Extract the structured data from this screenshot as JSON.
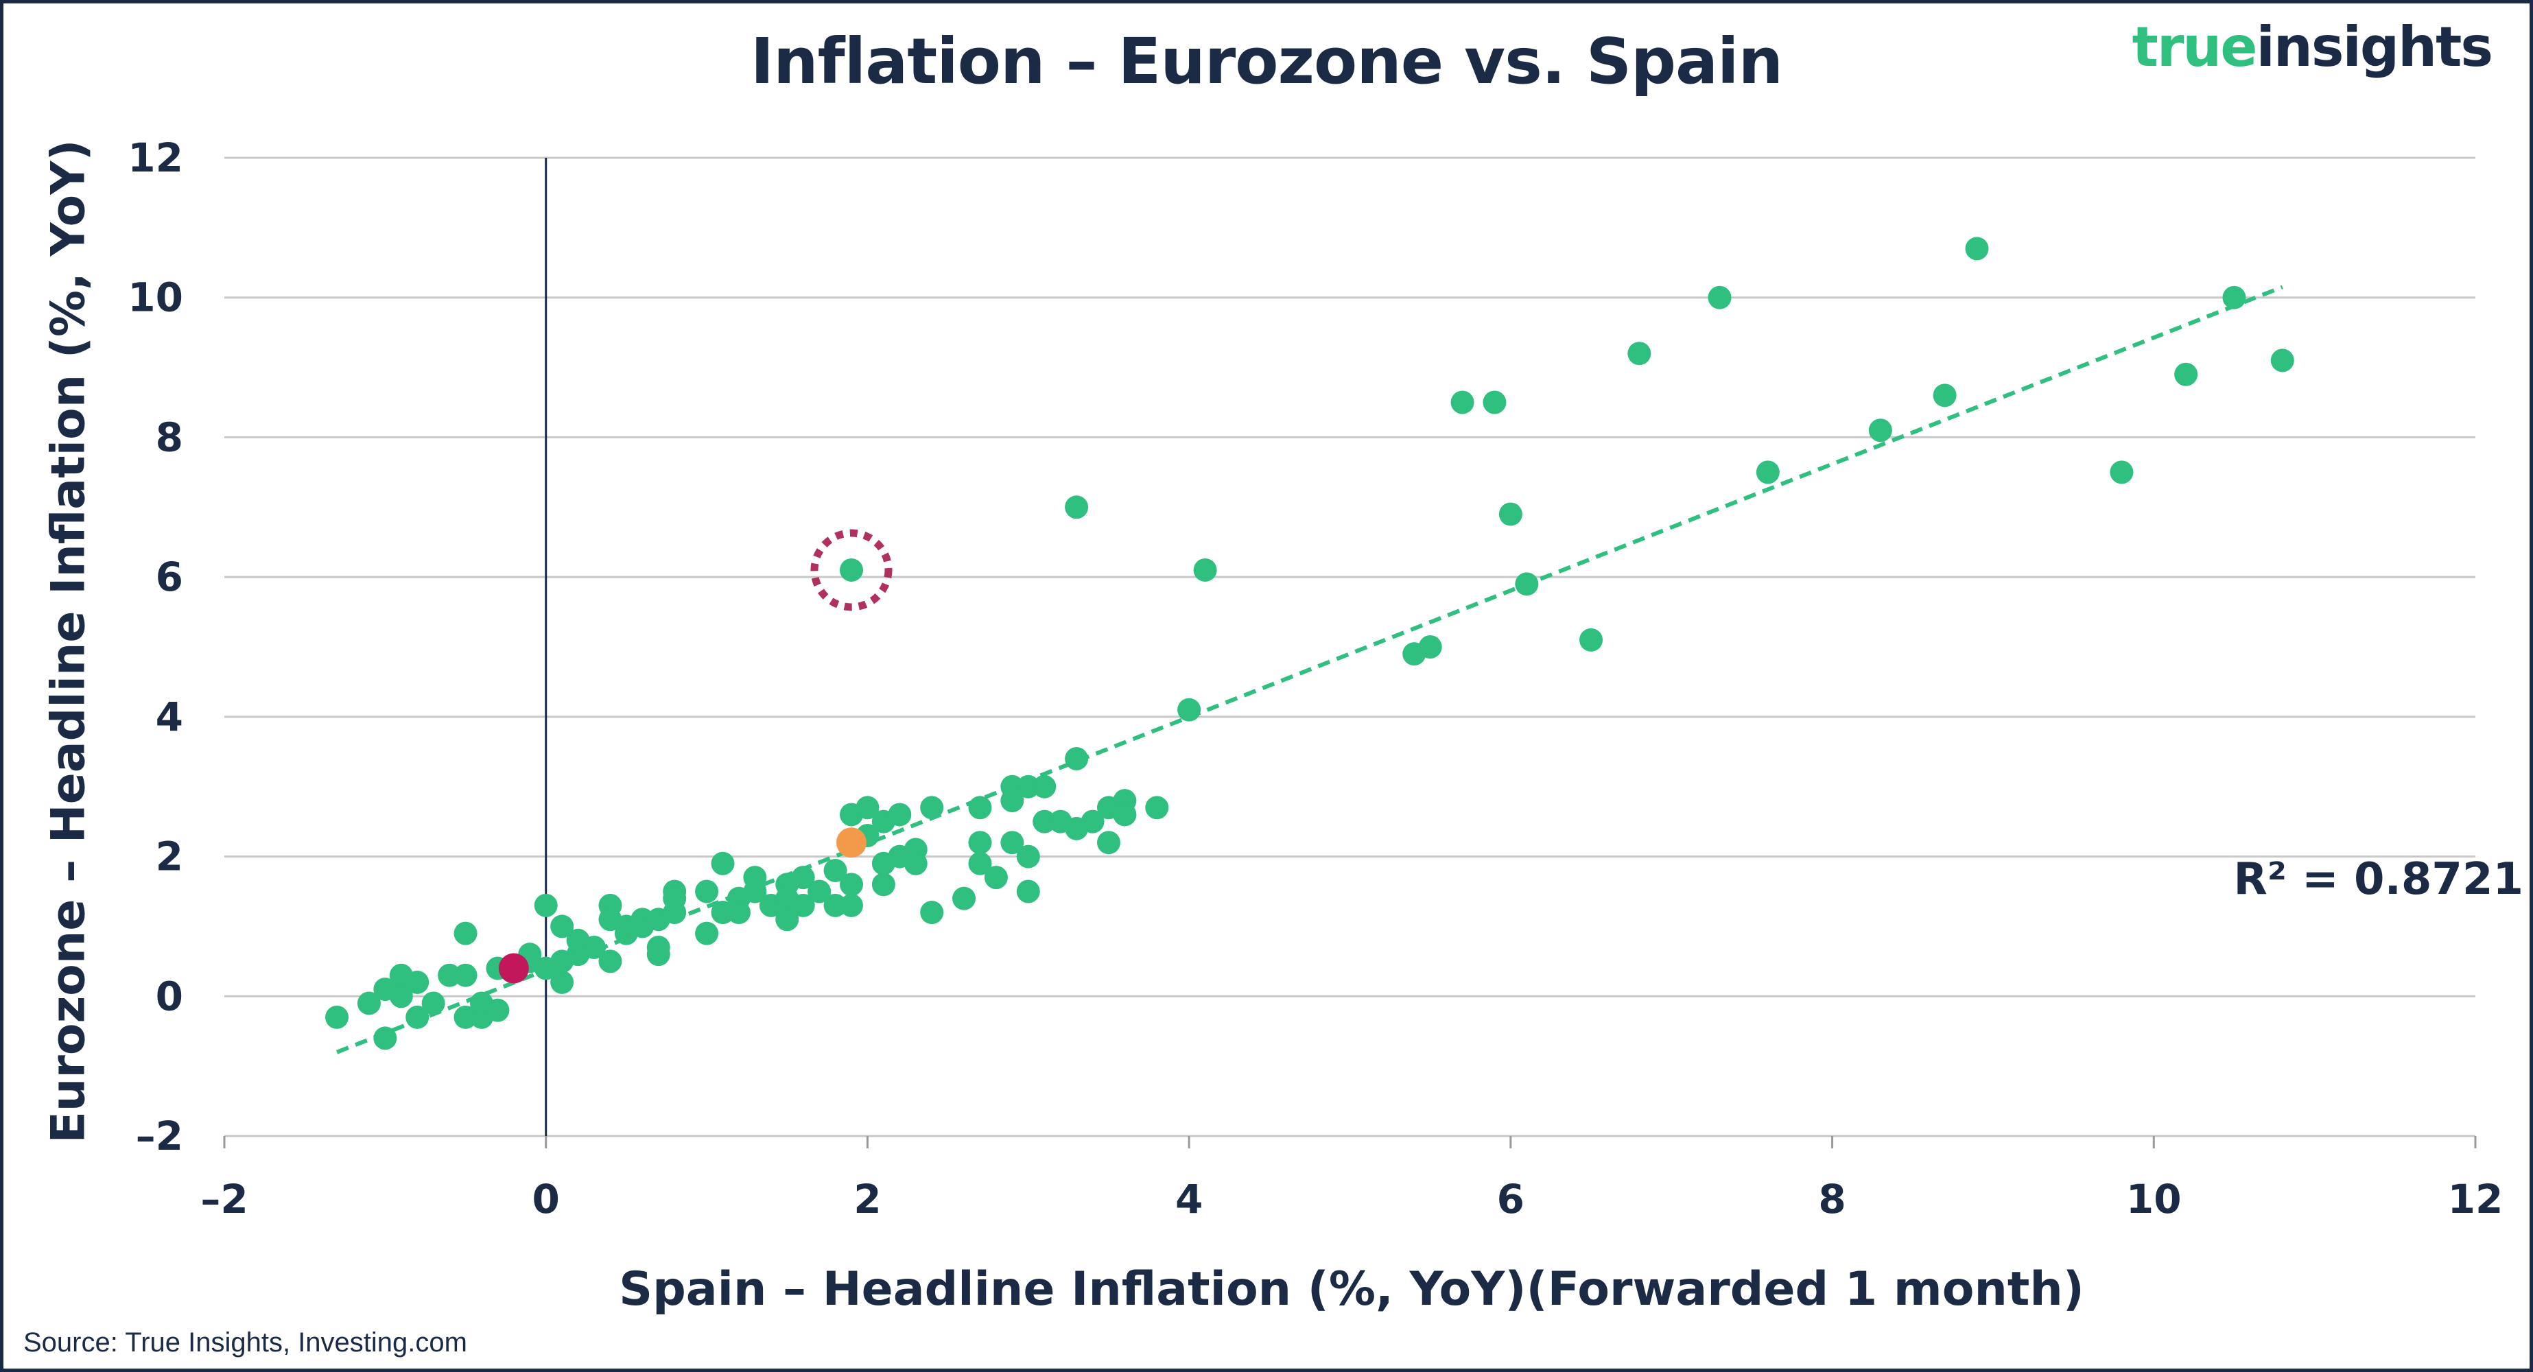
{
  "title": "Inflation – Eurozone vs. Spain",
  "logo": {
    "word1": "true",
    "word2": "insights"
  },
  "source": "Source: True Insights,  Investing.com",
  "annotation": "R² = 0.8721",
  "colors": {
    "points": "#2fbf7f",
    "trendline": "#2fbf7f",
    "latest": "#c2185b",
    "highlight": "#f2994a",
    "outlier_ring": "#b03060",
    "text": "#1c2b45",
    "grid": "#c8c8c8"
  },
  "chart_data": {
    "type": "scatter",
    "xlabel": "Spain – Headline Inflation (%, YoY)(Forwarded 1 month)",
    "ylabel": "Eurozone – Headline Inflation (%, YoY)",
    "xlim": [
      -2,
      12
    ],
    "ylim": [
      -2,
      12
    ],
    "x_ticks": [
      -2,
      0,
      2,
      4,
      6,
      8,
      10,
      12
    ],
    "y_ticks": [
      -2,
      0,
      2,
      4,
      6,
      8,
      10,
      12
    ],
    "x_tick_labels": [
      "–2",
      "0",
      "2",
      "4",
      "6",
      "8",
      "10",
      "12"
    ],
    "y_tick_labels": [
      "–2",
      "0",
      "2",
      "4",
      "6",
      "8",
      "10",
      "12"
    ],
    "grid": "horizontal",
    "trendline": {
      "type": "linear",
      "style": "dashed",
      "from": [
        -1.3,
        -0.8
      ],
      "to": [
        10.8,
        10.15
      ]
    },
    "r_squared": 0.8721,
    "points": [
      [
        -1.3,
        -0.3
      ],
      [
        -1.1,
        -0.1
      ],
      [
        -1.0,
        -0.6
      ],
      [
        -1.0,
        0.1
      ],
      [
        -0.9,
        0.3
      ],
      [
        -0.9,
        0.0
      ],
      [
        -0.8,
        0.2
      ],
      [
        -0.8,
        -0.3
      ],
      [
        -0.7,
        -0.1
      ],
      [
        -0.6,
        0.3
      ],
      [
        -0.5,
        0.9
      ],
      [
        -0.5,
        -0.3
      ],
      [
        -0.5,
        0.3
      ],
      [
        -0.4,
        -0.3
      ],
      [
        -0.4,
        -0.1
      ],
      [
        -0.3,
        -0.2
      ],
      [
        -0.3,
        0.4
      ],
      [
        -0.1,
        0.5
      ],
      [
        -0.1,
        0.6
      ],
      [
        0.0,
        1.3
      ],
      [
        0.0,
        0.4
      ],
      [
        0.1,
        0.2
      ],
      [
        0.1,
        0.5
      ],
      [
        0.1,
        1.0
      ],
      [
        0.2,
        0.6
      ],
      [
        0.2,
        0.8
      ],
      [
        0.3,
        0.7
      ],
      [
        0.4,
        1.3
      ],
      [
        0.4,
        1.1
      ],
      [
        0.4,
        0.5
      ],
      [
        0.5,
        0.9
      ],
      [
        0.5,
        1.0
      ],
      [
        0.6,
        1.0
      ],
      [
        0.6,
        1.1
      ],
      [
        0.7,
        0.6
      ],
      [
        0.7,
        0.7
      ],
      [
        0.7,
        1.1
      ],
      [
        0.8,
        1.2
      ],
      [
        0.8,
        1.5
      ],
      [
        0.8,
        1.4
      ],
      [
        1.0,
        0.9
      ],
      [
        1.0,
        1.5
      ],
      [
        1.1,
        1.9
      ],
      [
        1.1,
        1.2
      ],
      [
        1.2,
        1.4
      ],
      [
        1.2,
        1.2
      ],
      [
        1.3,
        1.5
      ],
      [
        1.3,
        1.7
      ],
      [
        1.4,
        1.3
      ],
      [
        1.5,
        1.1
      ],
      [
        1.5,
        1.6
      ],
      [
        1.5,
        1.4
      ],
      [
        1.6,
        1.7
      ],
      [
        1.6,
        1.3
      ],
      [
        1.7,
        1.5
      ],
      [
        1.8,
        1.3
      ],
      [
        1.8,
        1.8
      ],
      [
        1.9,
        1.3
      ],
      [
        1.9,
        1.6
      ],
      [
        1.9,
        2.6
      ],
      [
        1.9,
        6.1
      ],
      [
        2.0,
        2.7
      ],
      [
        2.0,
        2.3
      ],
      [
        2.1,
        1.6
      ],
      [
        2.1,
        1.9
      ],
      [
        2.1,
        2.5
      ],
      [
        2.2,
        2.6
      ],
      [
        2.2,
        2.0
      ],
      [
        2.3,
        2.1
      ],
      [
        2.3,
        1.9
      ],
      [
        2.4,
        2.7
      ],
      [
        2.4,
        1.2
      ],
      [
        2.6,
        1.4
      ],
      [
        2.7,
        2.2
      ],
      [
        2.7,
        2.7
      ],
      [
        2.7,
        1.9
      ],
      [
        2.8,
        1.7
      ],
      [
        2.9,
        2.2
      ],
      [
        2.9,
        3.0
      ],
      [
        2.9,
        2.8
      ],
      [
        3.0,
        3.0
      ],
      [
        3.0,
        2.0
      ],
      [
        3.0,
        1.5
      ],
      [
        3.1,
        3.0
      ],
      [
        3.1,
        2.5
      ],
      [
        3.2,
        2.5
      ],
      [
        3.3,
        3.4
      ],
      [
        3.3,
        2.4
      ],
      [
        3.3,
        7.0
      ],
      [
        3.4,
        2.5
      ],
      [
        3.5,
        2.7
      ],
      [
        3.5,
        2.2
      ],
      [
        3.6,
        2.8
      ],
      [
        3.6,
        2.6
      ],
      [
        3.8,
        2.7
      ],
      [
        4.0,
        4.1
      ],
      [
        4.1,
        6.1
      ],
      [
        5.4,
        4.9
      ],
      [
        5.5,
        5.0
      ],
      [
        5.7,
        8.5
      ],
      [
        5.9,
        8.5
      ],
      [
        6.0,
        6.9
      ],
      [
        6.1,
        5.9
      ],
      [
        6.5,
        5.1
      ],
      [
        6.8,
        9.2
      ],
      [
        7.3,
        10.0
      ],
      [
        7.6,
        7.5
      ],
      [
        8.3,
        8.1
      ],
      [
        8.7,
        8.6
      ],
      [
        8.9,
        10.7
      ],
      [
        9.8,
        7.5
      ],
      [
        10.2,
        8.9
      ],
      [
        10.5,
        10.0
      ],
      [
        10.8,
        9.1
      ]
    ],
    "latest_point": [
      -0.2,
      0.4
    ],
    "highlight_point": [
      1.9,
      2.2
    ],
    "circled_point": [
      1.9,
      6.1
    ]
  }
}
